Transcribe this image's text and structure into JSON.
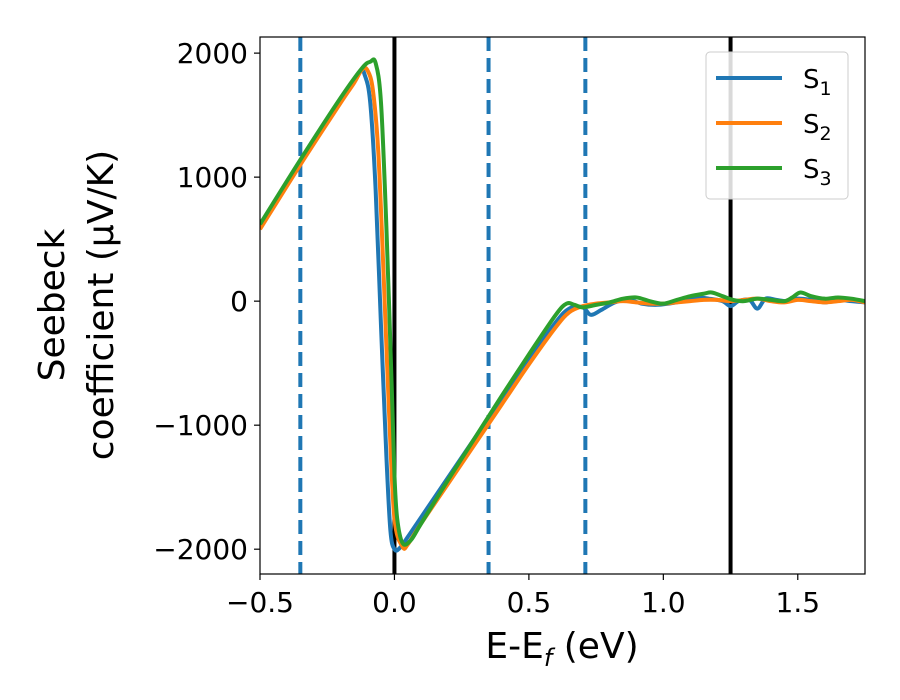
{
  "chart_data": {
    "type": "line",
    "xlabel": "E-E_f (eV)",
    "xlabel_parts": {
      "main": "E-E",
      "sub": "f",
      "tail": " (eV)"
    },
    "ylabel_lines": [
      "Seebeck",
      "coefficient  (μV/K)"
    ],
    "xlim": [
      -0.5,
      1.75
    ],
    "ylim": [
      -2200,
      2130
    ],
    "x_ticks": [
      -0.5,
      0.0,
      0.5,
      1.0,
      1.5
    ],
    "x_tick_labels": [
      "−0.5",
      "0.0",
      "0.5",
      "1.0",
      "1.5"
    ],
    "y_ticks": [
      -2000,
      -1000,
      0,
      1000,
      2000
    ],
    "y_tick_labels": [
      "−2000",
      "−1000",
      "0",
      "1000",
      "2000"
    ],
    "grid": false,
    "legend_placement": "top-right",
    "vertical_lines": [
      {
        "x": -0.35,
        "style": "dashed",
        "color": "#1f77b4"
      },
      {
        "x": 0.0,
        "style": "solid",
        "color": "#000000"
      },
      {
        "x": 0.35,
        "style": "dashed",
        "color": "#1f77b4"
      },
      {
        "x": 0.71,
        "style": "dashed",
        "color": "#1f77b4"
      },
      {
        "x": 1.25,
        "style": "solid",
        "color": "#000000"
      }
    ],
    "series": [
      {
        "name": "S_1",
        "label_main": "S",
        "label_sub": "1",
        "color": "#1f77b4",
        "x": [
          -0.5,
          -0.35,
          -0.2,
          -0.13,
          -0.11,
          -0.09,
          -0.07,
          -0.05,
          -0.03,
          -0.015,
          0.0,
          0.02,
          0.05,
          0.1,
          0.2,
          0.3,
          0.4,
          0.5,
          0.6,
          0.65,
          0.7,
          0.73,
          0.77,
          0.82,
          0.87,
          0.92,
          0.97,
          1.02,
          1.07,
          1.12,
          1.17,
          1.22,
          1.25,
          1.28,
          1.32,
          1.35,
          1.38,
          1.42,
          1.46,
          1.5,
          1.55,
          1.6,
          1.65,
          1.7,
          1.75
        ],
        "y": [
          600,
          1130,
          1620,
          1850,
          1820,
          1600,
          900,
          -200,
          -1250,
          -1850,
          -2000,
          -1990,
          -1900,
          -1740,
          -1420,
          -1100,
          -780,
          -470,
          -170,
          -60,
          -50,
          -110,
          -70,
          -10,
          10,
          -20,
          -30,
          -20,
          0,
          30,
          20,
          0,
          -40,
          0,
          10,
          -60,
          20,
          10,
          0,
          20,
          10,
          -10,
          10,
          0,
          -10
        ]
      },
      {
        "name": "S_2",
        "label_main": "S",
        "label_sub": "2",
        "color": "#ff7f0e",
        "x": [
          -0.5,
          -0.35,
          -0.2,
          -0.15,
          -0.12,
          -0.1,
          -0.08,
          -0.06,
          -0.04,
          -0.02,
          0.0,
          0.03,
          0.05,
          0.1,
          0.2,
          0.3,
          0.4,
          0.5,
          0.6,
          0.65,
          0.7,
          0.75,
          0.8,
          0.85,
          0.9,
          0.95,
          1.0,
          1.05,
          1.1,
          1.15,
          1.2,
          1.25,
          1.3,
          1.35,
          1.4,
          1.45,
          1.5,
          1.55,
          1.6,
          1.65,
          1.7,
          1.75
        ],
        "y": [
          580,
          1100,
          1600,
          1760,
          1870,
          1860,
          1700,
          1200,
          200,
          -900,
          -1750,
          -1980,
          -1960,
          -1790,
          -1470,
          -1150,
          -830,
          -510,
          -210,
          -90,
          -40,
          -20,
          -10,
          0,
          -10,
          -20,
          -20,
          -10,
          0,
          10,
          10,
          0,
          10,
          20,
          0,
          -10,
          10,
          0,
          -10,
          0,
          10,
          -10
        ]
      },
      {
        "name": "S_3",
        "label_main": "S",
        "label_sub": "3",
        "color": "#2ca02c",
        "x": [
          -0.5,
          -0.35,
          -0.2,
          -0.12,
          -0.09,
          -0.07,
          -0.05,
          -0.03,
          -0.01,
          0.0,
          0.01,
          0.03,
          0.06,
          0.1,
          0.2,
          0.3,
          0.4,
          0.5,
          0.6,
          0.64,
          0.67,
          0.7,
          0.75,
          0.8,
          0.85,
          0.9,
          0.95,
          1.0,
          1.05,
          1.1,
          1.15,
          1.18,
          1.22,
          1.26,
          1.3,
          1.35,
          1.4,
          1.45,
          1.48,
          1.51,
          1.55,
          1.6,
          1.65,
          1.7,
          1.75
        ],
        "y": [
          620,
          1140,
          1640,
          1880,
          1930,
          1920,
          1600,
          600,
          -700,
          -1400,
          -1750,
          -1950,
          -1930,
          -1790,
          -1440,
          -1100,
          -760,
          -430,
          -110,
          -20,
          -30,
          -50,
          -30,
          -10,
          20,
          30,
          0,
          -20,
          10,
          40,
          60,
          70,
          40,
          10,
          0,
          20,
          10,
          0,
          30,
          70,
          40,
          20,
          30,
          20,
          0
        ]
      }
    ]
  }
}
